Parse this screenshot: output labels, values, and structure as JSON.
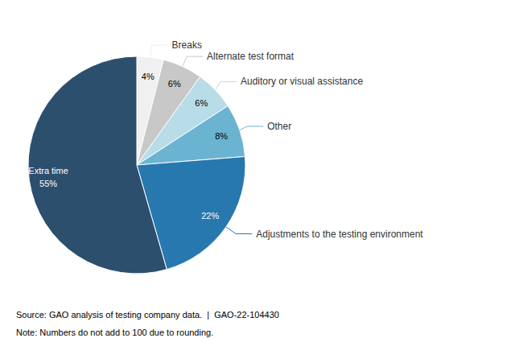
{
  "chart_data": {
    "type": "pie",
    "categories": [
      "Breaks",
      "Alternate test format",
      "Auditory or visual assistance",
      "Other",
      "Adjustments to the testing environment",
      "Extra time"
    ],
    "values": [
      4,
      6,
      6,
      8,
      22,
      55
    ],
    "value_labels": [
      "4%",
      "6%",
      "6%",
      "8%",
      "22%",
      "55%"
    ],
    "colors": [
      "#f0f0f0",
      "#c8c8c8",
      "#b8dce8",
      "#6ab4d2",
      "#2878b0",
      "#2d4f6e"
    ],
    "data_labels": true,
    "annotations": [
      "Source: GAO analysis of testing company data.  |  GAO-22-104430",
      "Note: Numbers do not add to 100 due to rounding."
    ]
  }
}
